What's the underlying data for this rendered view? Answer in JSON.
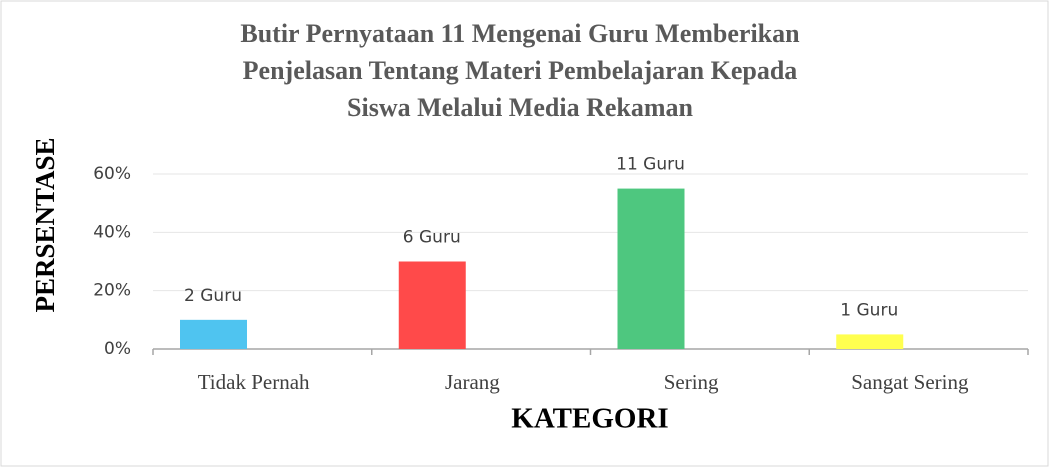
{
  "chart_data": {
    "type": "bar",
    "title": [
      "Butir Pernyataan 11 Mengenai Guru Memberikan",
      "Penjelasan Tentang Materi Pembelajaran Kepada",
      "Siswa Melalui Media Rekaman"
    ],
    "x_label": "KATEGORI",
    "y_label": "PERSENTASE",
    "categories": [
      "Tidak Pernah",
      "Jarang",
      "Sering",
      "Sangat Sering"
    ],
    "values": [
      10,
      30,
      55,
      5
    ],
    "colors": [
      "#4fc4f0",
      "#ff4a4a",
      "#4ec77f",
      "#ffff4f"
    ],
    "annotations": [
      "2 Guru",
      "6 Guru",
      "11 Guru",
      "1 Guru"
    ],
    "ylim": [
      0,
      60
    ],
    "yticks": [
      {
        "value": 0,
        "label": "0%"
      },
      {
        "value": 20,
        "label": "20%"
      },
      {
        "value": 40,
        "label": "40%"
      },
      {
        "value": 60,
        "label": "60%"
      }
    ],
    "grid": true
  }
}
